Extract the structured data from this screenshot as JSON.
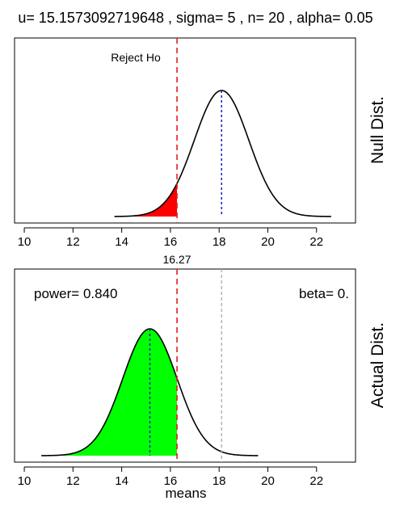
{
  "title": "u= 15.1573092719648 , sigma= 5 , n= 20 , alpha= 0.05",
  "colors": {
    "critical_line": "#e0201b",
    "null_mean_line": "#1a1acc",
    "actual_ref_line": "#b0b0b0",
    "reject_fill": "#ff0000",
    "power_fill": "#00ff00",
    "curve": "#000000"
  },
  "chart_data": [
    {
      "type": "area",
      "panel": "null",
      "side_label": "Null Dist.",
      "annotation": "Reject Ho",
      "critical_value": 16.27,
      "critical_label": "16.27",
      "mean": 18.1,
      "sd": 1.118,
      "curve_x_range": [
        13.7,
        22.6
      ],
      "shaded_region": [
        13.7,
        16.27
      ],
      "xlim": [
        9.6,
        23.6
      ],
      "x_ticks": [
        "10",
        "12",
        "14",
        "16",
        "18",
        "20",
        "22"
      ],
      "xlabel": ""
    },
    {
      "type": "area",
      "panel": "actual",
      "side_label": "Actual Dist.",
      "power_label": "power= 0.840",
      "beta_label": "beta= 0.",
      "critical_value": 16.27,
      "mean": 15.157,
      "null_mean": 18.1,
      "sd": 1.118,
      "curve_x_range": [
        10.7,
        19.6
      ],
      "shaded_region": [
        10.7,
        16.27
      ],
      "xlim": [
        9.6,
        23.6
      ],
      "x_ticks": [
        "10",
        "12",
        "14",
        "16",
        "18",
        "20",
        "22"
      ],
      "xlabel": "means"
    }
  ]
}
